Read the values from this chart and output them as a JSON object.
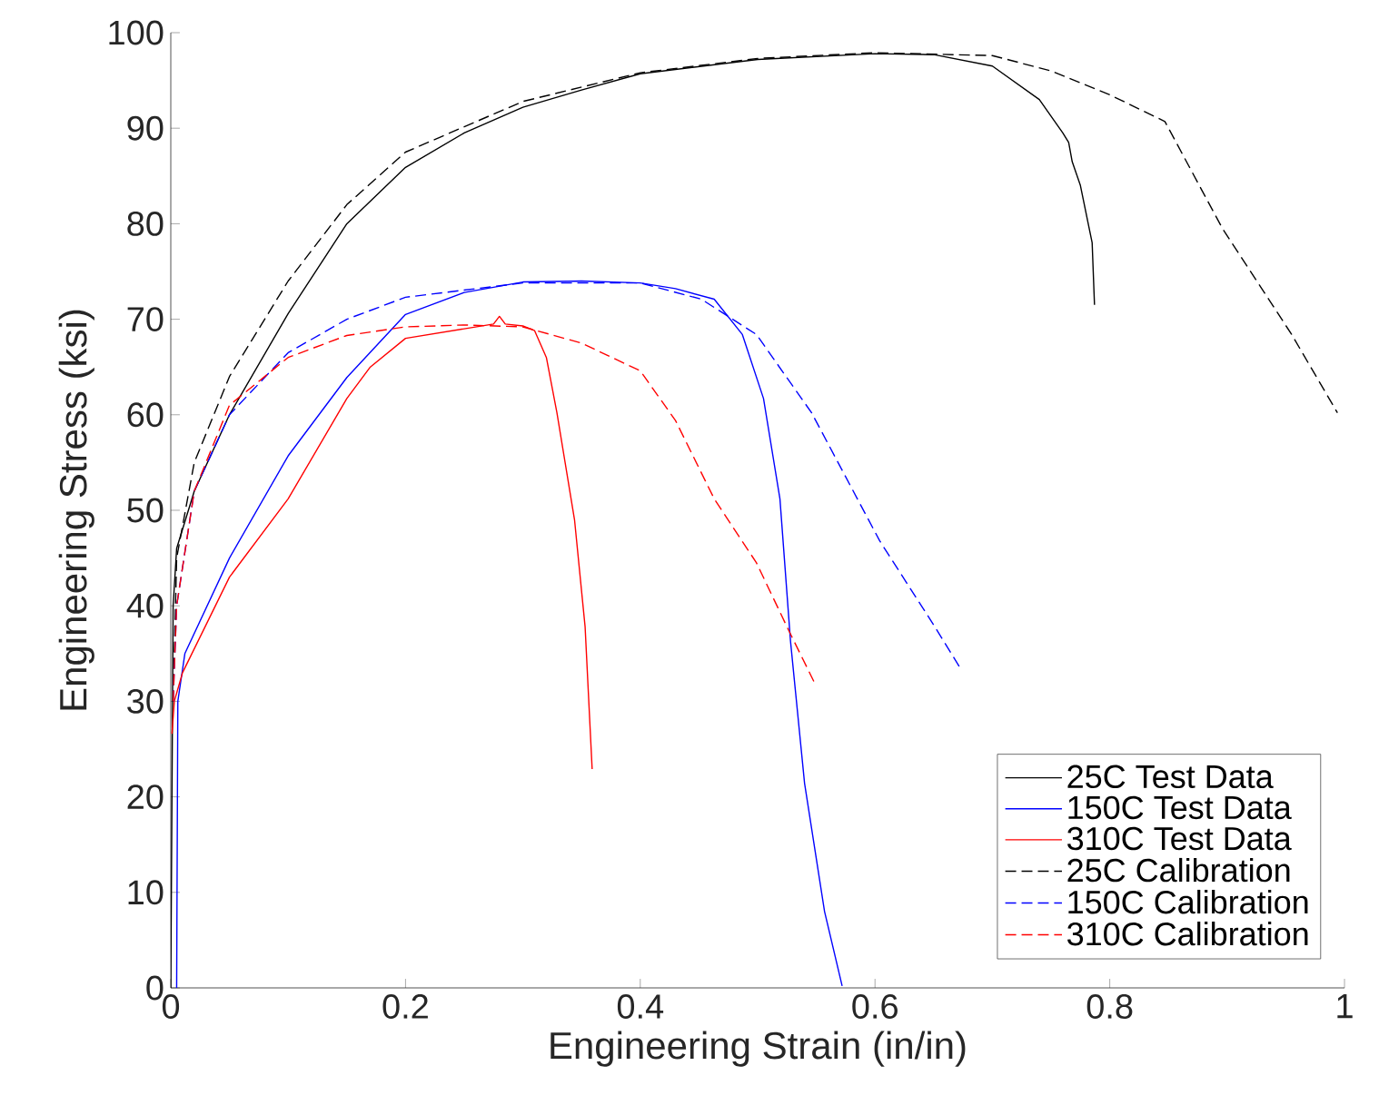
{
  "chart_data": {
    "type": "line",
    "xlabel": "Engineering Strain (in/in)",
    "ylabel": "Engineering Stress (ksi)",
    "xlim": [
      0,
      1
    ],
    "ylim": [
      0,
      100
    ],
    "xticks": [
      0,
      0.2,
      0.4,
      0.6,
      0.8,
      1
    ],
    "yticks": [
      0,
      10,
      20,
      30,
      40,
      50,
      60,
      70,
      80,
      90,
      100
    ],
    "legend": "bottom right",
    "series": [
      {
        "name": "25C Test Data",
        "color": "#000000",
        "line_style": "solid",
        "x": [
          0,
          0.002,
          0.005,
          0.02,
          0.05,
          0.1,
          0.15,
          0.2,
          0.25,
          0.3,
          0.35,
          0.4,
          0.5,
          0.6,
          0.65,
          0.7,
          0.74,
          0.76,
          0.765,
          0.768,
          0.775,
          0.785,
          0.787
        ],
        "values": [
          0,
          40,
          46,
          52,
          60,
          70.6,
          80,
          85.9,
          89.5,
          92.2,
          94,
          95.7,
          97.2,
          97.8,
          97.7,
          96.5,
          93,
          89.5,
          88.5,
          86.5,
          84,
          78,
          71.5
        ]
      },
      {
        "name": "150C Test Data",
        "color": "#0000ff",
        "line_style": "solid",
        "x": [
          0.005,
          0.006,
          0.012,
          0.05,
          0.1,
          0.15,
          0.2,
          0.25,
          0.3,
          0.35,
          0.4,
          0.43,
          0.463,
          0.487,
          0.505,
          0.519,
          0.528,
          0.54,
          0.557,
          0.572
        ],
        "values": [
          0,
          30,
          35,
          45,
          55.7,
          63.9,
          70.5,
          72.8,
          73.9,
          74,
          73.8,
          73.2,
          72.1,
          68.4,
          61.7,
          51.2,
          36.3,
          21.4,
          8,
          0.2
        ]
      },
      {
        "name": "310C Test Data",
        "color": "#ff0000",
        "line_style": "solid",
        "x": [
          0.001,
          0.003,
          0.01,
          0.05,
          0.1,
          0.15,
          0.17,
          0.2,
          0.25,
          0.275,
          0.28,
          0.285,
          0.3,
          0.31,
          0.32,
          0.329,
          0.344,
          0.353,
          0.359
        ],
        "values": [
          26.6,
          30,
          33,
          43,
          51.2,
          61.7,
          65,
          68,
          69,
          69.5,
          70.3,
          69.5,
          69.3,
          68.8,
          66,
          60.2,
          49,
          37.8,
          22.9
        ]
      },
      {
        "name": "25C Calibration",
        "color": "#000000",
        "line_style": "dashed",
        "x": [
          0.002,
          0.005,
          0.02,
          0.05,
          0.1,
          0.15,
          0.2,
          0.3,
          0.4,
          0.5,
          0.6,
          0.7,
          0.75,
          0.8,
          0.847,
          0.896,
          0.955,
          0.994
        ],
        "values": [
          30,
          45,
          55,
          64,
          74,
          82,
          87.5,
          92.8,
          95.8,
          97.3,
          97.9,
          97.6,
          96,
          93.5,
          90.7,
          79.5,
          68.4,
          60.2
        ]
      },
      {
        "name": "150C Calibration",
        "color": "#0000ff",
        "line_style": "dashed",
        "x": [
          0.002,
          0.005,
          0.02,
          0.05,
          0.1,
          0.15,
          0.2,
          0.3,
          0.4,
          0.452,
          0.499,
          0.546,
          0.604,
          0.651,
          0.673
        ],
        "values": [
          30,
          40,
          52,
          60,
          66.5,
          70,
          72.3,
          73.8,
          73.8,
          72.1,
          68.4,
          60.2,
          46.8,
          37.8,
          33.4
        ]
      },
      {
        "name": "310C Calibration",
        "color": "#ff0000",
        "line_style": "dashed",
        "x": [
          0.002,
          0.005,
          0.02,
          0.05,
          0.1,
          0.15,
          0.2,
          0.25,
          0.3,
          0.35,
          0.4,
          0.43,
          0.463,
          0.499,
          0.525,
          0.549
        ],
        "values": [
          30,
          40,
          52,
          61,
          66,
          68.3,
          69.2,
          69.4,
          69.2,
          67.5,
          64.6,
          59.4,
          51.2,
          44.5,
          37.8,
          31.8
        ]
      }
    ]
  }
}
